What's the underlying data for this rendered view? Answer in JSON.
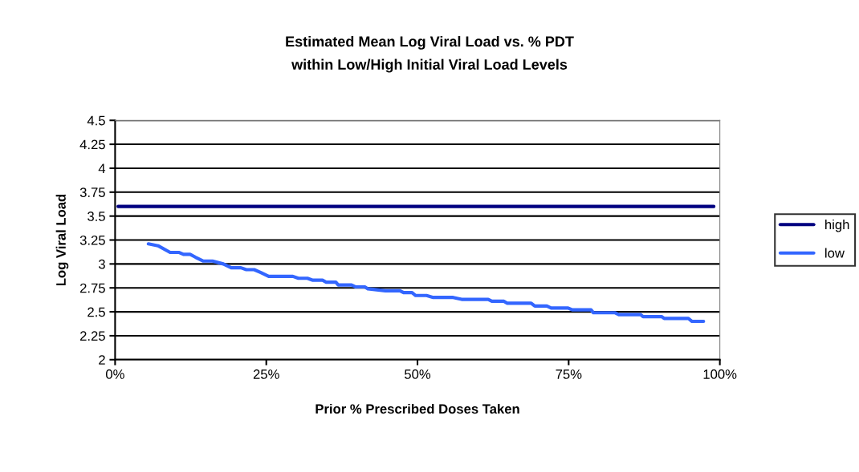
{
  "chart_data": {
    "type": "line",
    "title": "Estimated Mean Log Viral Load vs. % PDT\nwithin Low/High Initial Viral Load Levels",
    "xlabel": "Prior % Prescribed Doses Taken",
    "ylabel": "Log Viral Load",
    "xlim": [
      0,
      100
    ],
    "xticks": [
      {
        "value": 0,
        "label": "0%"
      },
      {
        "value": 25,
        "label": "25%"
      },
      {
        "value": 50,
        "label": "50%"
      },
      {
        "value": 75,
        "label": "75%"
      },
      {
        "value": 100,
        "label": "100%"
      }
    ],
    "ylim": [
      2,
      4.5
    ],
    "yticks": [
      2,
      2.25,
      2.5,
      2.75,
      3,
      3.25,
      3.5,
      3.75,
      4,
      4.25,
      4.5
    ],
    "grid": "y",
    "legend": "right",
    "marker": "none",
    "line_style": "solid",
    "series": [
      {
        "name": "high",
        "color": "#000080",
        "x": [
          0.5,
          99
        ],
        "values": [
          3.6,
          3.6
        ]
      },
      {
        "name": "low",
        "color": "#3366ff",
        "x": [
          5.5,
          7.1,
          9.1,
          10.6,
          11.3,
          12.4,
          13.3,
          14.6,
          16.1,
          17.9,
          19.2,
          20.8,
          21.7,
          23.0,
          24.1,
          25.4,
          29.4,
          30.3,
          31.8,
          32.7,
          34.3,
          34.9,
          36.5,
          36.9,
          39.1,
          39.8,
          41.3,
          41.8,
          44.7,
          47.1,
          47.7,
          49.1,
          49.7,
          51.5,
          52.6,
          55.9,
          57.3,
          61.7,
          62.3,
          64.3,
          64.8,
          68.8,
          69.4,
          71.4,
          72.1,
          74.9,
          75.6,
          78.7,
          79.1,
          82.7,
          83.3,
          86.9,
          87.3,
          90.4,
          90.8,
          94.8,
          95.4,
          97.3
        ],
        "values": [
          3.21,
          3.19,
          3.12,
          3.12,
          3.1,
          3.1,
          3.07,
          3.03,
          3.03,
          3.0,
          2.96,
          2.96,
          2.94,
          2.94,
          2.91,
          2.87,
          2.87,
          2.85,
          2.85,
          2.83,
          2.83,
          2.81,
          2.81,
          2.78,
          2.78,
          2.76,
          2.76,
          2.74,
          2.72,
          2.72,
          2.7,
          2.7,
          2.67,
          2.67,
          2.65,
          2.65,
          2.63,
          2.63,
          2.61,
          2.61,
          2.59,
          2.59,
          2.56,
          2.56,
          2.54,
          2.54,
          2.52,
          2.52,
          2.49,
          2.49,
          2.47,
          2.47,
          2.45,
          2.45,
          2.43,
          2.43,
          2.4,
          2.4
        ]
      }
    ]
  }
}
